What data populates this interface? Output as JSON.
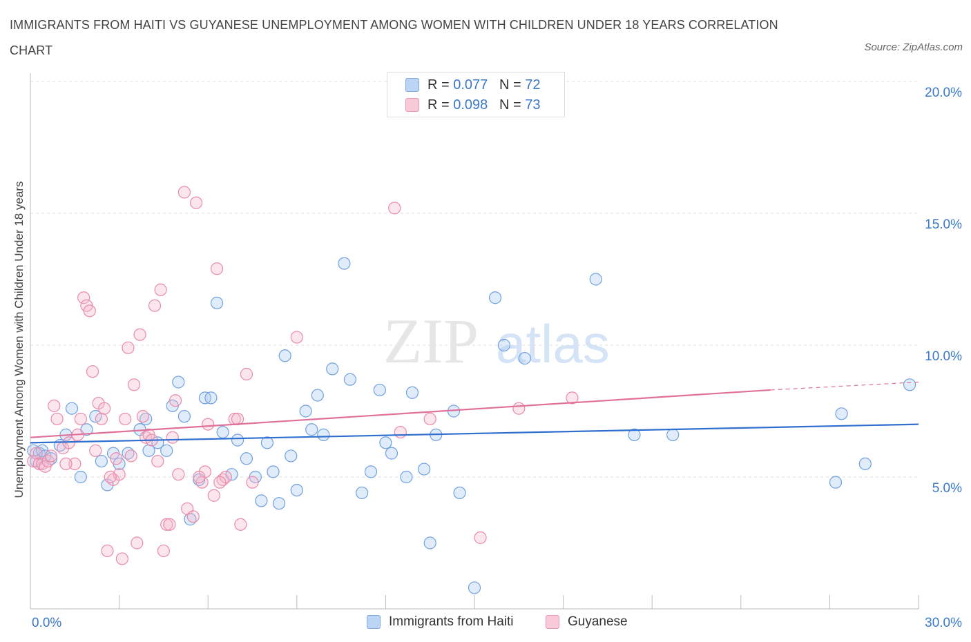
{
  "title": "IMMIGRANTS FROM HAITI VS GUYANESE UNEMPLOYMENT AMONG WOMEN WITH CHILDREN UNDER 18 YEARS CORRELATION CHART",
  "source": "Source: ZipAtlas.com",
  "watermark": "ZIPatlas",
  "legend_top": {
    "rows": [
      {
        "r_label": "R = ",
        "r_value": "0.077",
        "n_label": "N = ",
        "n_value": "72",
        "color": "#a9c8f0"
      },
      {
        "r_label": "R = ",
        "r_value": "0.098",
        "n_label": "N = ",
        "n_value": "73",
        "color": "#f5b8ca"
      }
    ]
  },
  "chart_data": {
    "type": "scatter",
    "ylabel": "Unemployment Among Women with Children Under 18 years",
    "xlim": [
      0,
      30
    ],
    "ylim": [
      0,
      20
    ],
    "x_tick_labels": [
      "0.0%",
      "30.0%"
    ],
    "y_ticks": [
      5,
      10,
      15,
      20
    ],
    "y_tick_labels": [
      "5.0%",
      "10.0%",
      "15.0%",
      "20.0%"
    ],
    "grid": true,
    "series": [
      {
        "name": "Immigrants from Haiti",
        "color": "#6fa0e0",
        "fill": "#a9c8f0",
        "line_color": "#2f6fd0",
        "trend": [
          [
            0,
            6.3
          ],
          [
            30,
            7.0
          ]
        ],
        "points": [
          [
            0.1,
            6.0
          ],
          [
            0.2,
            5.6
          ],
          [
            0.3,
            5.9
          ],
          [
            0.4,
            6.0
          ],
          [
            0.5,
            5.8
          ],
          [
            0.7,
            5.7
          ],
          [
            1.0,
            6.2
          ],
          [
            1.2,
            6.6
          ],
          [
            1.4,
            7.6
          ],
          [
            1.7,
            5.0
          ],
          [
            1.9,
            6.8
          ],
          [
            2.2,
            7.3
          ],
          [
            2.4,
            5.6
          ],
          [
            2.6,
            4.7
          ],
          [
            2.8,
            5.9
          ],
          [
            3.0,
            5.5
          ],
          [
            3.3,
            5.9
          ],
          [
            3.7,
            6.8
          ],
          [
            3.9,
            7.2
          ],
          [
            4.0,
            6.0
          ],
          [
            4.3,
            6.3
          ],
          [
            4.6,
            6.0
          ],
          [
            4.8,
            7.7
          ],
          [
            5.0,
            8.6
          ],
          [
            5.2,
            7.3
          ],
          [
            5.4,
            3.4
          ],
          [
            5.7,
            4.9
          ],
          [
            5.9,
            8.0
          ],
          [
            6.1,
            8.0
          ],
          [
            6.3,
            11.6
          ],
          [
            6.5,
            6.7
          ],
          [
            6.8,
            5.1
          ],
          [
            7.0,
            6.4
          ],
          [
            7.3,
            5.7
          ],
          [
            7.6,
            5.0
          ],
          [
            7.8,
            4.1
          ],
          [
            8.0,
            6.3
          ],
          [
            8.2,
            5.2
          ],
          [
            8.4,
            4.0
          ],
          [
            8.6,
            9.6
          ],
          [
            8.8,
            5.8
          ],
          [
            9.0,
            4.5
          ],
          [
            9.3,
            7.5
          ],
          [
            9.5,
            6.8
          ],
          [
            9.7,
            8.1
          ],
          [
            9.9,
            6.6
          ],
          [
            10.2,
            9.1
          ],
          [
            10.6,
            13.1
          ],
          [
            10.8,
            8.7
          ],
          [
            11.2,
            4.4
          ],
          [
            11.5,
            5.2
          ],
          [
            11.8,
            8.3
          ],
          [
            12.0,
            6.3
          ],
          [
            12.2,
            5.9
          ],
          [
            12.7,
            5.0
          ],
          [
            12.9,
            8.2
          ],
          [
            13.3,
            5.3
          ],
          [
            13.5,
            2.5
          ],
          [
            13.7,
            6.6
          ],
          [
            14.3,
            7.5
          ],
          [
            14.5,
            4.4
          ],
          [
            15.0,
            0.8
          ],
          [
            15.7,
            11.8
          ],
          [
            16.0,
            10.0
          ],
          [
            16.7,
            9.5
          ],
          [
            19.1,
            12.5
          ],
          [
            20.4,
            6.6
          ],
          [
            21.7,
            6.6
          ],
          [
            27.2,
            4.8
          ],
          [
            27.4,
            7.4
          ],
          [
            28.2,
            5.5
          ],
          [
            29.7,
            8.5
          ]
        ]
      },
      {
        "name": "Guyanese",
        "color": "#e98aaa",
        "fill": "#f5b8ca",
        "line_color": "#e0709a",
        "trend": [
          [
            0,
            6.5
          ],
          [
            25,
            8.3
          ]
        ],
        "trend_dashed": [
          [
            25,
            8.3
          ],
          [
            30,
            8.6
          ]
        ],
        "points": [
          [
            0.1,
            5.6
          ],
          [
            0.2,
            5.9
          ],
          [
            0.3,
            5.5
          ],
          [
            0.4,
            5.5
          ],
          [
            0.5,
            5.4
          ],
          [
            0.6,
            5.6
          ],
          [
            0.8,
            7.7
          ],
          [
            0.9,
            7.2
          ],
          [
            1.1,
            6.1
          ],
          [
            1.3,
            6.3
          ],
          [
            1.5,
            5.5
          ],
          [
            1.6,
            6.6
          ],
          [
            1.8,
            11.8
          ],
          [
            1.9,
            11.5
          ],
          [
            2.0,
            11.3
          ],
          [
            2.1,
            9.0
          ],
          [
            2.3,
            7.8
          ],
          [
            2.4,
            7.2
          ],
          [
            2.5,
            7.6
          ],
          [
            2.6,
            2.2
          ],
          [
            2.8,
            4.9
          ],
          [
            2.9,
            5.7
          ],
          [
            3.0,
            5.1
          ],
          [
            3.1,
            1.9
          ],
          [
            3.3,
            9.9
          ],
          [
            3.5,
            8.5
          ],
          [
            3.6,
            2.5
          ],
          [
            3.7,
            10.4
          ],
          [
            3.8,
            7.3
          ],
          [
            3.9,
            6.5
          ],
          [
            4.0,
            6.6
          ],
          [
            4.2,
            11.5
          ],
          [
            4.4,
            12.1
          ],
          [
            4.5,
            2.2
          ],
          [
            4.6,
            3.2
          ],
          [
            4.7,
            3.2
          ],
          [
            4.8,
            6.5
          ],
          [
            4.9,
            7.9
          ],
          [
            5.0,
            5.1
          ],
          [
            5.2,
            15.8
          ],
          [
            5.3,
            3.8
          ],
          [
            5.5,
            3.5
          ],
          [
            5.6,
            15.4
          ],
          [
            5.8,
            4.8
          ],
          [
            5.9,
            5.2
          ],
          [
            6.0,
            7.0
          ],
          [
            6.2,
            4.3
          ],
          [
            6.3,
            12.9
          ],
          [
            6.5,
            4.9
          ],
          [
            6.6,
            5.0
          ],
          [
            6.9,
            7.2
          ],
          [
            7.1,
            3.2
          ],
          [
            7.3,
            8.9
          ],
          [
            7.5,
            4.8
          ],
          [
            9.0,
            10.3
          ],
          [
            12.3,
            15.2
          ],
          [
            12.5,
            6.7
          ],
          [
            13.5,
            7.2
          ],
          [
            15.2,
            2.7
          ],
          [
            16.5,
            7.6
          ],
          [
            18.3,
            8.0
          ],
          [
            1.2,
            5.5
          ],
          [
            2.2,
            6.0
          ],
          [
            3.4,
            5.8
          ],
          [
            4.1,
            6.4
          ],
          [
            5.7,
            5.0
          ],
          [
            0.7,
            5.8
          ],
          [
            1.7,
            7.2
          ],
          [
            2.7,
            5.0
          ],
          [
            3.2,
            7.2
          ],
          [
            4.3,
            5.6
          ],
          [
            6.4,
            4.8
          ],
          [
            7.0,
            7.2
          ]
        ]
      }
    ]
  }
}
